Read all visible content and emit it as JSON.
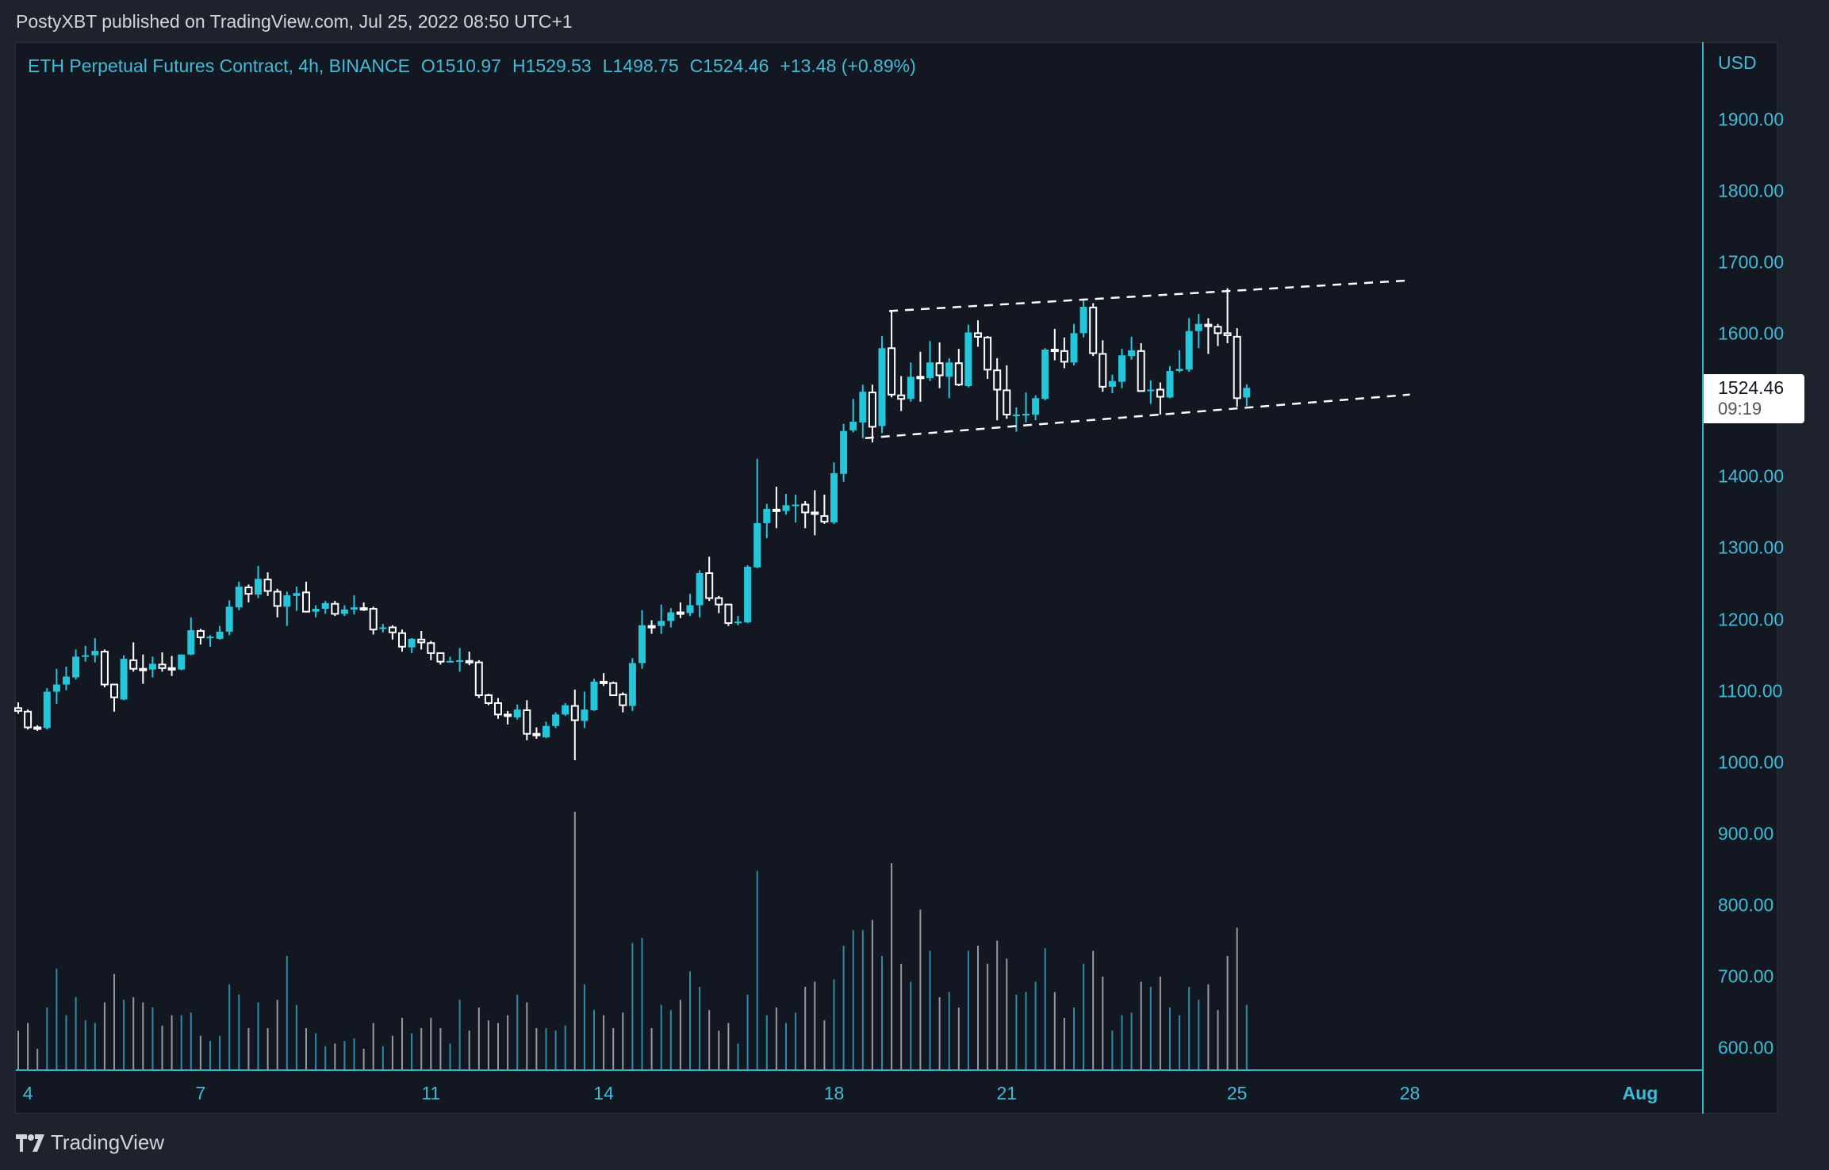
{
  "header": {
    "published": "PostyXBT published on TradingView.com, Jul 25, 2022 08:50 UTC+1"
  },
  "legend": {
    "symbol": "ETH Perpetual Futures Contract, 4h, BINANCE",
    "open": "O1510.97",
    "high": "H1529.53",
    "low": "L1498.75",
    "close": "C1524.46",
    "change": "+13.48 (+0.89%)"
  },
  "price_axis": {
    "currency": "USD"
  },
  "last_price": {
    "value": "1524.46",
    "countdown": "09:19"
  },
  "footer": {
    "brand": "TradingView",
    "logo_icon": "tradingview-logo-icon"
  },
  "colors": {
    "up": "#26c6da",
    "down": "#ffffff",
    "volume_up": "#2a8fa6",
    "volume_down": "#9598a1",
    "axis": "#2bb3cc",
    "background": "#131722"
  },
  "chart_data": {
    "type": "candlestick",
    "interval": "4h",
    "ylim": [
      600,
      1900
    ],
    "yticks": [
      1900,
      1800,
      1700,
      1600,
      1500,
      1400,
      1300,
      1200,
      1100,
      1000,
      900,
      800,
      700,
      600
    ],
    "yticks_shown": [
      "1900.00",
      "1800.00",
      "1700.00",
      "1600.00",
      "1400.00",
      "1300.00",
      "1200.00",
      "1100.00",
      "1000.00",
      "900.00",
      "800.00",
      "700.00",
      "600.00"
    ],
    "xticks": [
      {
        "label": "4",
        "date": "2022-07-04T00:00"
      },
      {
        "label": "7",
        "date": "2022-07-07T00:00"
      },
      {
        "label": "11",
        "date": "2022-07-11T00:00"
      },
      {
        "label": "14",
        "date": "2022-07-14T00:00"
      },
      {
        "label": "18",
        "date": "2022-07-18T00:00"
      },
      {
        "label": "21",
        "date": "2022-07-21T00:00"
      },
      {
        "label": "25",
        "date": "2022-07-25T00:00"
      },
      {
        "label": "28",
        "date": "2022-07-28T00:00"
      },
      {
        "label": "Aug",
        "date": "2022-08-01T00:00",
        "bold": true
      }
    ],
    "volume_scale": "relative (max = 100)",
    "columns": [
      "time",
      "open",
      "high",
      "low",
      "close",
      "volume"
    ],
    "candles": [
      [
        "2022-07-03T20:00",
        1076,
        1084,
        1068,
        1072,
        15
      ],
      [
        "2022-07-04T00:00",
        1071,
        1074,
        1046,
        1049,
        18
      ],
      [
        "2022-07-04T04:00",
        1049,
        1052,
        1044,
        1048,
        8
      ],
      [
        "2022-07-04T08:00",
        1048,
        1104,
        1046,
        1099,
        24
      ],
      [
        "2022-07-04T12:00",
        1099,
        1131,
        1082,
        1109,
        39
      ],
      [
        "2022-07-04T16:00",
        1109,
        1134,
        1101,
        1120,
        21
      ],
      [
        "2022-07-04T20:00",
        1119,
        1158,
        1116,
        1148,
        28
      ],
      [
        "2022-07-05T00:00",
        1148,
        1163,
        1141,
        1150,
        19
      ],
      [
        "2022-07-05T04:00",
        1150,
        1174,
        1140,
        1156,
        18
      ],
      [
        "2022-07-05T08:00",
        1155,
        1158,
        1105,
        1109,
        26
      ],
      [
        "2022-07-05T12:00",
        1109,
        1110,
        1071,
        1091,
        37
      ],
      [
        "2022-07-05T16:00",
        1088,
        1150,
        1087,
        1145,
        27
      ],
      [
        "2022-07-05T20:00",
        1143,
        1168,
        1127,
        1131,
        28
      ],
      [
        "2022-07-06T00:00",
        1131,
        1151,
        1110,
        1130,
        26
      ],
      [
        "2022-07-06T04:00",
        1130,
        1148,
        1119,
        1138,
        24
      ],
      [
        "2022-07-06T08:00",
        1137,
        1154,
        1127,
        1132,
        17
      ],
      [
        "2022-07-06T12:00",
        1132,
        1149,
        1121,
        1131,
        21
      ],
      [
        "2022-07-06T16:00",
        1130,
        1151,
        1129,
        1151,
        21
      ],
      [
        "2022-07-06T20:00",
        1151,
        1203,
        1150,
        1185,
        22
      ],
      [
        "2022-07-07T00:00",
        1184,
        1187,
        1165,
        1175,
        13
      ],
      [
        "2022-07-07T04:00",
        1174,
        1178,
        1162,
        1176,
        11
      ],
      [
        "2022-07-07T08:00",
        1173,
        1191,
        1172,
        1183,
        13
      ],
      [
        "2022-07-07T12:00",
        1183,
        1227,
        1178,
        1218,
        33
      ],
      [
        "2022-07-07T16:00",
        1217,
        1253,
        1213,
        1246,
        29
      ],
      [
        "2022-07-07T20:00",
        1245,
        1249,
        1224,
        1236,
        16
      ],
      [
        "2022-07-08T00:00",
        1235,
        1275,
        1230,
        1257,
        26
      ],
      [
        "2022-07-08T04:00",
        1256,
        1266,
        1233,
        1240,
        16
      ],
      [
        "2022-07-08T08:00",
        1239,
        1243,
        1203,
        1219,
        27
      ],
      [
        "2022-07-08T12:00",
        1218,
        1239,
        1191,
        1234,
        44
      ],
      [
        "2022-07-08T16:00",
        1233,
        1246,
        1212,
        1237,
        25
      ],
      [
        "2022-07-08T20:00",
        1238,
        1253,
        1210,
        1211,
        16
      ],
      [
        "2022-07-09T00:00",
        1211,
        1220,
        1203,
        1215,
        14
      ],
      [
        "2022-07-09T04:00",
        1215,
        1226,
        1208,
        1223,
        9
      ],
      [
        "2022-07-09T08:00",
        1222,
        1226,
        1205,
        1208,
        10
      ],
      [
        "2022-07-09T12:00",
        1208,
        1220,
        1205,
        1214,
        11
      ],
      [
        "2022-07-09T16:00",
        1214,
        1234,
        1207,
        1217,
        12
      ],
      [
        "2022-07-09T20:00",
        1216,
        1224,
        1212,
        1215,
        8
      ],
      [
        "2022-07-10T00:00",
        1215,
        1218,
        1179,
        1186,
        18
      ],
      [
        "2022-07-10T04:00",
        1187,
        1194,
        1182,
        1189,
        9
      ],
      [
        "2022-07-10T08:00",
        1189,
        1192,
        1172,
        1182,
        13
      ],
      [
        "2022-07-10T12:00",
        1181,
        1186,
        1155,
        1162,
        20
      ],
      [
        "2022-07-10T16:00",
        1161,
        1174,
        1153,
        1173,
        14
      ],
      [
        "2022-07-10T20:00",
        1172,
        1184,
        1158,
        1168,
        16
      ],
      [
        "2022-07-11T00:00",
        1167,
        1170,
        1143,
        1153,
        20
      ],
      [
        "2022-07-11T04:00",
        1153,
        1154,
        1137,
        1141,
        16
      ],
      [
        "2022-07-11T08:00",
        1141,
        1148,
        1140,
        1142,
        10
      ],
      [
        "2022-07-11T12:00",
        1141,
        1160,
        1127,
        1143,
        27
      ],
      [
        "2022-07-11T16:00",
        1142,
        1155,
        1136,
        1140,
        15
      ],
      [
        "2022-07-11T20:00",
        1140,
        1143,
        1090,
        1094,
        24
      ],
      [
        "2022-07-12T00:00",
        1094,
        1096,
        1080,
        1083,
        19
      ],
      [
        "2022-07-12T04:00",
        1083,
        1090,
        1061,
        1067,
        18
      ],
      [
        "2022-07-12T08:00",
        1067,
        1072,
        1053,
        1066,
        21
      ],
      [
        "2022-07-12T12:00",
        1063,
        1081,
        1060,
        1074,
        29
      ],
      [
        "2022-07-12T16:00",
        1073,
        1087,
        1031,
        1040,
        26
      ],
      [
        "2022-07-12T20:00",
        1040,
        1049,
        1033,
        1038,
        16
      ],
      [
        "2022-07-13T00:00",
        1035,
        1057,
        1034,
        1051,
        16
      ],
      [
        "2022-07-13T04:00",
        1051,
        1070,
        1048,
        1067,
        15
      ],
      [
        "2022-07-13T08:00",
        1067,
        1083,
        1065,
        1080,
        17
      ],
      [
        "2022-07-13T12:00",
        1079,
        1102,
        1003,
        1059,
        100
      ],
      [
        "2022-07-13T16:00",
        1058,
        1099,
        1048,
        1074,
        33
      ],
      [
        "2022-07-13T20:00",
        1073,
        1117,
        1072,
        1113,
        23
      ],
      [
        "2022-07-14T00:00",
        1113,
        1125,
        1107,
        1112,
        21
      ],
      [
        "2022-07-14T04:00",
        1111,
        1113,
        1093,
        1094,
        16
      ],
      [
        "2022-07-14T08:00",
        1095,
        1098,
        1070,
        1080,
        22
      ],
      [
        "2022-07-14T12:00",
        1079,
        1146,
        1072,
        1139,
        49
      ],
      [
        "2022-07-14T16:00",
        1139,
        1213,
        1131,
        1192,
        51
      ],
      [
        "2022-07-14T20:00",
        1191,
        1199,
        1180,
        1190,
        16
      ],
      [
        "2022-07-15T00:00",
        1191,
        1221,
        1180,
        1198,
        25
      ],
      [
        "2022-07-15T04:00",
        1198,
        1216,
        1189,
        1210,
        23
      ],
      [
        "2022-07-15T08:00",
        1210,
        1224,
        1202,
        1209,
        27
      ],
      [
        "2022-07-15T12:00",
        1209,
        1236,
        1205,
        1220,
        38
      ],
      [
        "2022-07-15T16:00",
        1220,
        1269,
        1203,
        1265,
        32
      ],
      [
        "2022-07-15T20:00",
        1265,
        1288,
        1226,
        1230,
        23
      ],
      [
        "2022-07-16T00:00",
        1230,
        1233,
        1209,
        1221,
        15
      ],
      [
        "2022-07-16T04:00",
        1221,
        1222,
        1191,
        1195,
        18
      ],
      [
        "2022-07-16T08:00",
        1196,
        1205,
        1192,
        1197,
        10
      ],
      [
        "2022-07-16T12:00",
        1196,
        1276,
        1195,
        1274,
        29
      ],
      [
        "2022-07-16T16:00",
        1273,
        1425,
        1272,
        1335,
        77
      ],
      [
        "2022-07-16T20:00",
        1335,
        1362,
        1314,
        1355,
        21
      ],
      [
        "2022-07-17T00:00",
        1354,
        1386,
        1328,
        1353,
        24
      ],
      [
        "2022-07-17T04:00",
        1352,
        1376,
        1347,
        1360,
        18
      ],
      [
        "2022-07-17T08:00",
        1359,
        1375,
        1336,
        1361,
        22
      ],
      [
        "2022-07-17T12:00",
        1361,
        1366,
        1328,
        1350,
        32
      ],
      [
        "2022-07-17T16:00",
        1350,
        1381,
        1318,
        1349,
        34
      ],
      [
        "2022-07-17T20:00",
        1345,
        1375,
        1334,
        1337,
        19
      ],
      [
        "2022-07-18T00:00",
        1336,
        1420,
        1334,
        1405,
        35
      ],
      [
        "2022-07-18T04:00",
        1404,
        1474,
        1393,
        1464,
        48
      ],
      [
        "2022-07-18T08:00",
        1465,
        1509,
        1462,
        1477,
        54
      ],
      [
        "2022-07-18T12:00",
        1476,
        1529,
        1454,
        1519,
        54
      ],
      [
        "2022-07-18T16:00",
        1518,
        1529,
        1448,
        1470,
        58
      ],
      [
        "2022-07-18T20:00",
        1471,
        1597,
        1461,
        1580,
        44
      ],
      [
        "2022-07-19T00:00",
        1580,
        1632,
        1511,
        1515,
        80
      ],
      [
        "2022-07-19T04:00",
        1514,
        1541,
        1492,
        1509,
        41
      ],
      [
        "2022-07-19T08:00",
        1509,
        1560,
        1505,
        1540,
        34
      ],
      [
        "2022-07-19T12:00",
        1540,
        1575,
        1505,
        1539,
        62
      ],
      [
        "2022-07-19T16:00",
        1538,
        1590,
        1534,
        1560,
        46
      ],
      [
        "2022-07-19T20:00",
        1559,
        1588,
        1524,
        1542,
        28
      ],
      [
        "2022-07-20T00:00",
        1540,
        1566,
        1510,
        1560,
        30
      ],
      [
        "2022-07-20T04:00",
        1559,
        1579,
        1527,
        1529,
        24
      ],
      [
        "2022-07-20T08:00",
        1527,
        1613,
        1525,
        1602,
        46
      ],
      [
        "2022-07-20T12:00",
        1601,
        1619,
        1582,
        1596,
        48
      ],
      [
        "2022-07-20T16:00",
        1595,
        1597,
        1537,
        1550,
        41
      ],
      [
        "2022-07-20T20:00",
        1549,
        1566,
        1479,
        1522,
        50
      ],
      [
        "2022-07-21T00:00",
        1521,
        1556,
        1481,
        1487,
        43
      ],
      [
        "2022-07-21T04:00",
        1486,
        1497,
        1463,
        1487,
        29
      ],
      [
        "2022-07-21T08:00",
        1487,
        1518,
        1476,
        1488,
        30
      ],
      [
        "2022-07-21T12:00",
        1487,
        1514,
        1479,
        1510,
        34
      ],
      [
        "2022-07-21T16:00",
        1509,
        1580,
        1507,
        1578,
        47
      ],
      [
        "2022-07-21T20:00",
        1578,
        1607,
        1563,
        1577,
        30
      ],
      [
        "2022-07-22T00:00",
        1576,
        1595,
        1552,
        1561,
        20
      ],
      [
        "2022-07-22T04:00",
        1560,
        1614,
        1556,
        1601,
        24
      ],
      [
        "2022-07-22T08:00",
        1601,
        1647,
        1595,
        1638,
        41
      ],
      [
        "2022-07-22T12:00",
        1637,
        1643,
        1569,
        1573,
        46
      ],
      [
        "2022-07-22T16:00",
        1572,
        1591,
        1519,
        1526,
        36
      ],
      [
        "2022-07-22T20:00",
        1526,
        1543,
        1517,
        1534,
        15
      ],
      [
        "2022-07-23T00:00",
        1533,
        1579,
        1524,
        1570,
        21
      ],
      [
        "2022-07-23T04:00",
        1569,
        1596,
        1564,
        1577,
        22
      ],
      [
        "2022-07-23T08:00",
        1576,
        1587,
        1519,
        1520,
        34
      ],
      [
        "2022-07-23T12:00",
        1521,
        1535,
        1502,
        1522,
        32
      ],
      [
        "2022-07-23T16:00",
        1522,
        1532,
        1487,
        1512,
        36
      ],
      [
        "2022-07-23T20:00",
        1511,
        1555,
        1510,
        1548,
        24
      ],
      [
        "2022-07-24T00:00",
        1548,
        1577,
        1546,
        1551,
        21
      ],
      [
        "2022-07-24T04:00",
        1550,
        1622,
        1547,
        1604,
        32
      ],
      [
        "2022-07-24T08:00",
        1604,
        1628,
        1580,
        1614,
        27
      ],
      [
        "2022-07-24T12:00",
        1613,
        1622,
        1572,
        1612,
        33
      ],
      [
        "2022-07-24T16:00",
        1610,
        1614,
        1583,
        1601,
        23
      ],
      [
        "2022-07-24T20:00",
        1601,
        1664,
        1587,
        1598,
        44
      ],
      [
        "2022-07-25T00:00",
        1596,
        1608,
        1498,
        1510,
        55
      ],
      [
        "2022-07-25T04:00",
        1510.97,
        1529.53,
        1498.75,
        1524.46,
        25
      ]
    ],
    "drawings": [
      {
        "type": "dashed-trendline",
        "name": "channel-upper",
        "from": [
          "2022-07-18T23:00",
          1632
        ],
        "to": [
          "2022-07-28T00:00",
          1675
        ]
      },
      {
        "type": "dashed-trendline",
        "name": "channel-lower",
        "from": [
          "2022-07-18T13:00",
          1454
        ],
        "to": [
          "2022-07-28T00:00",
          1515
        ]
      }
    ]
  }
}
